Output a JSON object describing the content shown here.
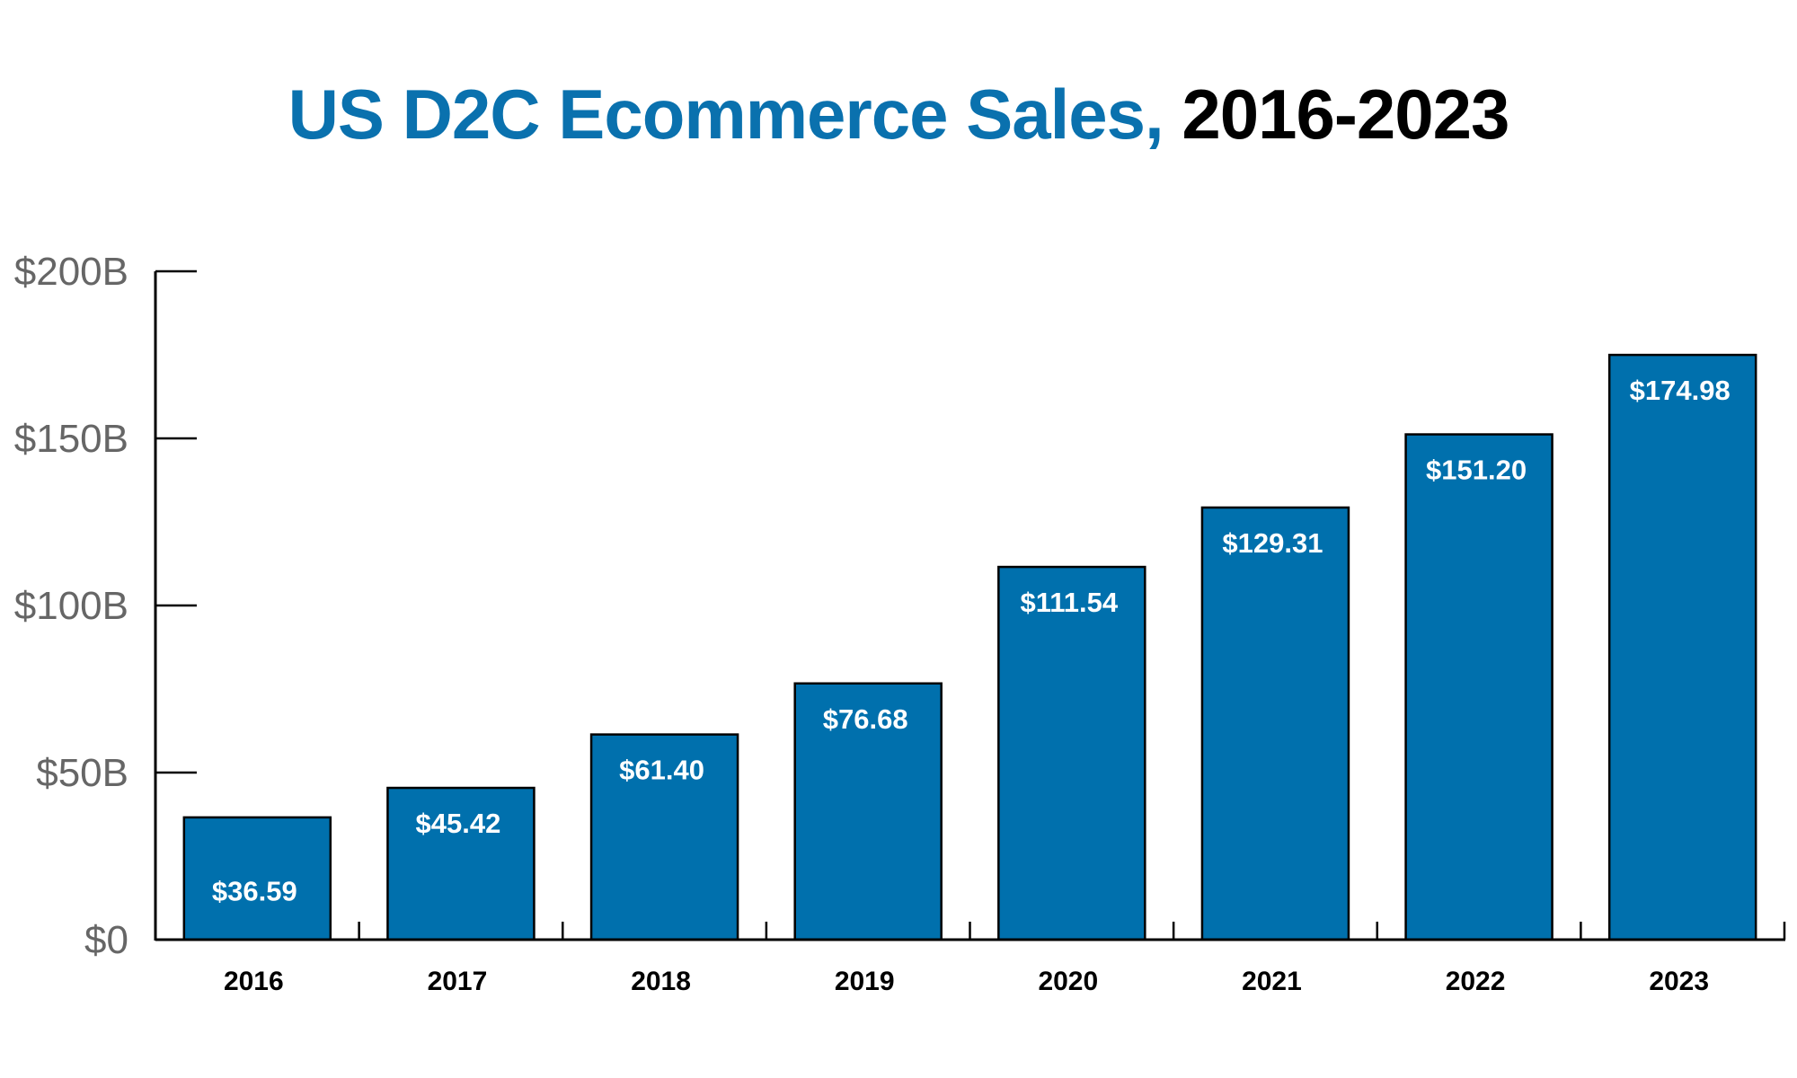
{
  "chart_data": {
    "type": "bar",
    "title": "US D2C Ecommerce Sales, 2016-2023",
    "title_parts": {
      "highlight": "US D2C Ecommerce Sales,",
      "rest": " 2016-2023"
    },
    "xlabel": "",
    "ylabel": "",
    "categories": [
      "2016",
      "2017",
      "2018",
      "2019",
      "2020",
      "2021",
      "2022",
      "2023"
    ],
    "values": [
      36.59,
      45.42,
      61.4,
      76.68,
      111.54,
      129.31,
      151.2,
      174.98
    ],
    "data_labels": [
      "$36.59",
      "$45.42",
      "$61.40",
      "$76.68",
      "$111.54",
      "$129.31",
      "$151.20",
      "$174.98"
    ],
    "ylim": [
      0,
      200
    ],
    "yticks": [
      0,
      50,
      100,
      150,
      200
    ],
    "ytick_labels": [
      "$0",
      "$50B",
      "$100B",
      "$150B",
      "$200B"
    ],
    "grid": false,
    "legend": "none",
    "colors": {
      "bar": "#0070ad",
      "title_highlight": "#0a71ae",
      "tick_label": "#666666"
    }
  }
}
